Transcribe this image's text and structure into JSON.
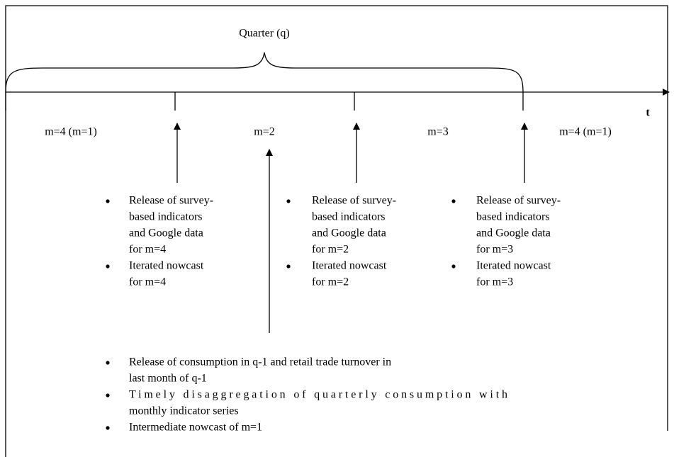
{
  "title": "Quarter (q)",
  "axis_label": "t",
  "periods": [
    "m=4 (m=1)",
    "m=2",
    "m=3",
    "m=4 (m=1)"
  ],
  "releases": [
    {
      "bullets": [
        [
          "Release of survey-",
          "based indicators",
          "and Google data",
          "for m=4"
        ],
        [
          "Iterated nowcast",
          "for m=4"
        ]
      ]
    },
    {
      "bullets": [
        [
          "Release of survey-",
          "based indicators",
          "and Google data",
          "for m=2"
        ],
        [
          "Iterated nowcast",
          "for m=2"
        ]
      ]
    },
    {
      "bullets": [
        [
          "Release of survey-",
          "based indicators",
          "and Google data",
          "for m=3"
        ],
        [
          "Iterated nowcast",
          "for m=3"
        ]
      ]
    }
  ],
  "quarterly_release": {
    "bullets": [
      [
        "Release of consumption in q-1 and retail trade turnover in",
        "last month of q-1"
      ],
      [
        "Timely disaggregation of quarterly consumption with",
        "monthly indicator series"
      ],
      [
        "Intermediate nowcast of m=1"
      ]
    ]
  }
}
